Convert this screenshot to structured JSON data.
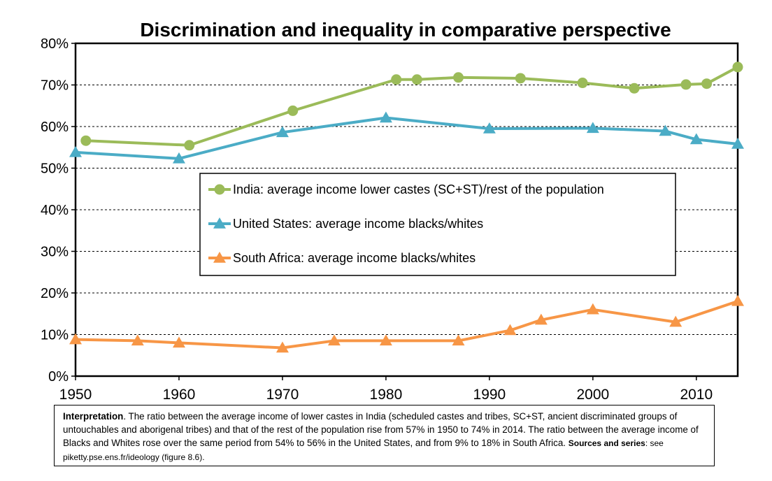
{
  "chart_data": {
    "type": "line",
    "title": "Discrimination and inequality in comparative perspective",
    "xlabel": "",
    "ylabel": "",
    "xlim": [
      1950,
      2014
    ],
    "ylim": [
      0,
      80
    ],
    "x_ticks": [
      "1950",
      "1960",
      "1970",
      "1980",
      "1990",
      "2000",
      "2010"
    ],
    "y_ticks": [
      "0%",
      "10%",
      "20%",
      "30%",
      "40%",
      "50%",
      "60%",
      "70%",
      "80%"
    ],
    "grid": "horizontal dashed",
    "legend_position": "center",
    "series": [
      {
        "name": "India: average income lower castes (SC+ST)/rest of the population",
        "color": "#9BBB59",
        "marker": "circle",
        "x": [
          1951,
          1961,
          1971,
          1981,
          1983,
          1987,
          1993,
          1999,
          2004,
          2009,
          2011,
          2014
        ],
        "y": [
          56.6,
          55.5,
          63.8,
          71.3,
          71.3,
          71.8,
          71.6,
          70.5,
          69.2,
          70.1,
          70.3,
          74.3
        ]
      },
      {
        "name": "United States: average income blacks/whites",
        "color": "#4BACC6",
        "marker": "triangle",
        "x": [
          1950,
          1960,
          1970,
          1980,
          1990,
          2000,
          2007,
          2010,
          2014
        ],
        "y": [
          53.8,
          52.3,
          58.6,
          62.1,
          59.5,
          59.6,
          58.9,
          56.9,
          55.8
        ]
      },
      {
        "name": "South Africa: average income blacks/whites",
        "color": "#F79646",
        "marker": "triangle",
        "x": [
          1950,
          1956,
          1960,
          1970,
          1975,
          1980,
          1987,
          1992,
          1995,
          2000,
          2008,
          2014
        ],
        "y": [
          8.8,
          8.5,
          8.0,
          6.8,
          8.5,
          8.5,
          8.5,
          11.0,
          13.5,
          16.0,
          13.0,
          18.0
        ]
      }
    ]
  },
  "note": {
    "heading": "Interpretation",
    "body": ". The ratio between the average income of lower castes in India (scheduled castes and tribes, SC+ST, ancient discriminated groups of untouchables and aborigenal tribes) and that of the rest of the population rise from 57% in 1950 to 74% in 2014. The ratio between the average income of Blacks and Whites rose over the same period from 54% to 56% in the United States, and from 9% to 18% in South Africa.",
    "sources_label": "Sources and series",
    "sources_text": ": see piketty.pse.ens.fr/ideology (figure 8.6)."
  }
}
